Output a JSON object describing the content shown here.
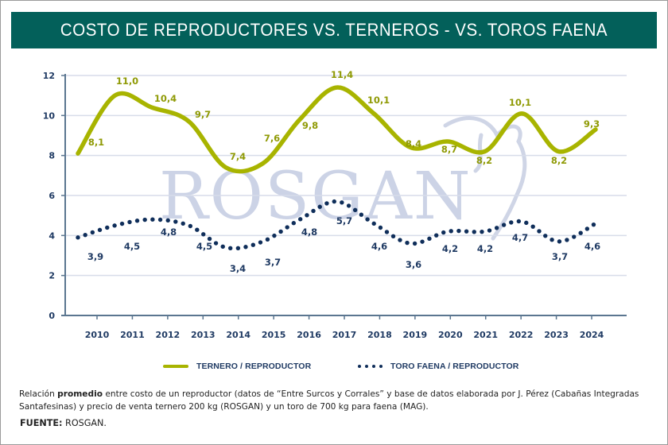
{
  "title": "COSTO DE REPRODUCTORES VS. TERNEROS - VS. TOROS FAENA",
  "watermark": "ROSGAN",
  "colors": {
    "title_bar": "#03605a",
    "ternero_line": "#a8b400",
    "ternero_label": "#8f9a05",
    "toro_dots": "#0f2e5a",
    "axis": "#5b7690",
    "grid": "#d7dcea"
  },
  "chart_data": {
    "type": "line",
    "title": "COSTO DE REPRODUCTORES VS. TERNEROS - VS. TOROS FAENA",
    "xlabel": "",
    "ylabel": "",
    "ylim": [
      0,
      12
    ],
    "yticks": [
      "0",
      "2",
      "4",
      "6",
      "8",
      "10",
      "12"
    ],
    "ytick_values": [
      0,
      2,
      4,
      6,
      8,
      10,
      12
    ],
    "grid": true,
    "legend_position": "bottom",
    "categories": [
      "2010",
      "2011",
      "2012",
      "2013",
      "2014",
      "2015",
      "2016",
      "2017",
      "2018",
      "2019",
      "2020",
      "2021",
      "2022",
      "2023",
      "2024"
    ],
    "series": [
      {
        "name": "TERNERO / REPRODUCTOR",
        "style": "solid",
        "values": [
          8.1,
          11.0,
          10.4,
          9.7,
          7.4,
          7.6,
          9.8,
          11.4,
          10.1,
          8.4,
          8.7,
          8.2,
          10.1,
          8.2,
          9.3
        ],
        "labels": [
          "8,1",
          "11,0",
          "10,4",
          "9,7",
          "7,4",
          "7,6",
          "9,8",
          "11,4",
          "10,1",
          "8,4",
          "8,7",
          "8,2",
          "10,1",
          "8,2",
          "9,3"
        ]
      },
      {
        "name": "TORO FAENA / REPRODUCTOR",
        "style": "dotted",
        "values": [
          3.9,
          4.5,
          4.8,
          4.5,
          3.4,
          3.7,
          4.8,
          5.7,
          4.6,
          3.6,
          4.2,
          4.2,
          4.7,
          3.7,
          4.6
        ],
        "labels": [
          "3,9",
          "4,5",
          "4,8",
          "4,5",
          "3,4",
          "3,7",
          "4,8",
          "5,7",
          "4,6",
          "3,6",
          "4,2",
          "4,2",
          "4,7",
          "3,7",
          "4,6"
        ]
      }
    ]
  },
  "footnote": {
    "prefix": "Relación ",
    "bold": "promedio",
    "rest": " entre costo de un reproductor (datos de “Entre Surcos y Corrales” y base de datos elaborada por J. Pérez (Cabañas Integradas Santafesinas) y precio de venta ternero 200 kg (ROSGAN) y un toro de 700 kg para faena (MAG)."
  },
  "source": {
    "label": "FUENTE:",
    "value": " ROSGAN."
  }
}
